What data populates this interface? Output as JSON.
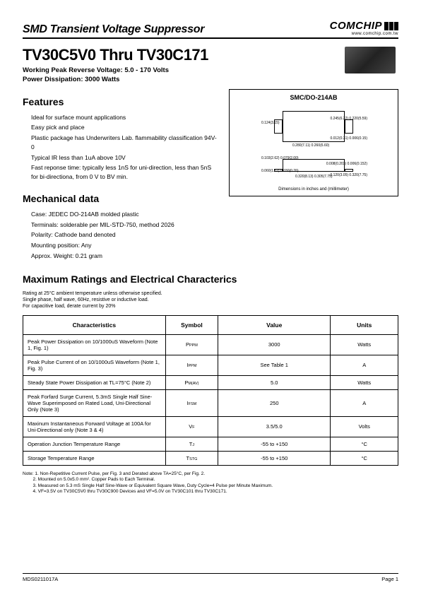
{
  "header": {
    "category": "SMD Transient Voltage Suppressor",
    "logo_text": "COMCHIP",
    "url": "www.comchip.com.tw"
  },
  "title": {
    "part": "TV30C5V0 Thru TV30C171",
    "line1": "Working Peak Reverse Voltage: 5.0 - 170 Volts",
    "line2": "Power Dissipation: 3000 Watts"
  },
  "features": {
    "heading": "Features",
    "items": [
      "Ideal for surface mount applications",
      "Easy pick and place",
      "Plastic package has Underwriters Lab. flammability classification 94V-0",
      "Typical IR less than 1uA above 10V",
      "Fast reponse time: typically less 1nS for uni-direction, less than 5nS for bi-directiona, from 0 V to BV min."
    ]
  },
  "mechanical": {
    "heading": "Mechanical data",
    "items": [
      "Case: JEDEC DO-214AB  molded plastic",
      "Terminals: solderable per  MIL-STD-750, method 2026",
      "Polarity: Cathode band denoted",
      "Mounting position: Any",
      "Approx. Weight: 0.21 gram"
    ]
  },
  "package": {
    "label": "SMC/DO-214AB",
    "caption": "Dimensions in inches and (millimeter)",
    "dims": {
      "d1": "0.124(3.15)",
      "d2": "0.245(6.22)\n0.220(5.59)",
      "d3": "0.280(7.11)\n0.260(6.60)",
      "d4": "0.012(0.31)\n0.006(0.15)",
      "d5": "0.103(2.62)\n0.079(2.00)",
      "d6": "0.060(1.52)\n0.030(0.76)",
      "d7": "0.320(8.13)\n0.305(7.75)",
      "d8": "0.008(0.203)\n0.006(0.152)",
      "d9": "0.120(3.05)\n0.320(7.75)"
    }
  },
  "ratings": {
    "heading": "Maximum Ratings and Electrical Characterics",
    "notes_top": [
      "Rating at 25°C ambient temperature unless otherwise specified.",
      "Single phase, half wave, 60Hz, resistive or inductive load.",
      "For capacitive load, derate current by 20%"
    ],
    "columns": [
      "Characteristics",
      "Symbol",
      "Value",
      "Units"
    ],
    "rows": [
      {
        "char": "Peak Power Dissipation on 10/1000uS Waveform (Note 1, Fig. 1)",
        "sym": "PPPM",
        "val": "3000",
        "unit": "Watts"
      },
      {
        "char": "Peak Pulse Current of on 10/1000uS Waveform (Note 1, Fig. 3)",
        "sym": "IPPM",
        "val": "See Table 1",
        "unit": "A"
      },
      {
        "char": "Steady State Power Dissipation at TL=75°C (Note 2)",
        "sym": "PM(AV)",
        "val": "5.0",
        "unit": "Watts"
      },
      {
        "char": "Peak Forfard Surge Current, 5.3mS Single Half Sine-Wave Superimposed on Rated Load, Uni-Directional Only (Note 3)",
        "sym": "IFSM",
        "val": "250",
        "unit": "A"
      },
      {
        "char": "Maxinum Instantaneous Forward Voltage at 100A for Uni-Directional only (Note 3 & 4)",
        "sym": "VF",
        "val": "3.5/5.0",
        "unit": "Volts"
      },
      {
        "char": "Operation Junction Temperature Range",
        "sym": "TJ",
        "val": "-55  to +150",
        "unit": "°C"
      },
      {
        "char": "Storage Temperature Range",
        "sym": "TSTG",
        "val": "-55  to +150",
        "unit": "°C"
      }
    ]
  },
  "footnotes": {
    "label": "Note:",
    "items": [
      "1. Non-Repetitive Current Pulse, per Fig. 3 and Derated above TA=25°C, per Fig. 2.",
      "2. Mounted on 5.0x5.0 mm². Copper Pads to Each Terminal.",
      "3. Measured on 5.3 mS Single Half Sine-Wave or Equivalent Square Wave, Duty Cycle=4 Pulse per Minute Maximum.",
      "4. VF=3.5V on TV30C5V0 thru TV30C900 Devices and VF=5.0V on TV30C101 thru TV30C171."
    ]
  },
  "footer": {
    "doc_id": "MDS0211017A",
    "page": "Page 1"
  }
}
